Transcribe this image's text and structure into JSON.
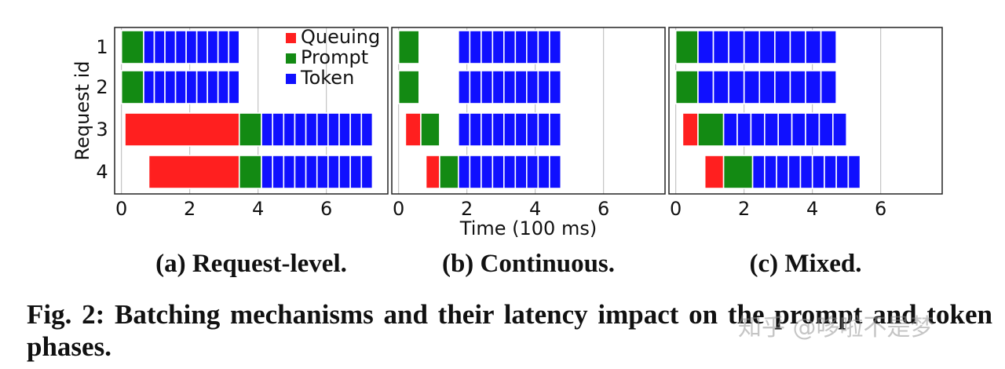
{
  "colors": {
    "Queuing": "#ff1f1f",
    "Prompt": "#138a13",
    "Token": "#1010ff",
    "grid": "#b8b8b8",
    "frame": "#222222"
  },
  "chart_data": [
    {
      "type": "bar",
      "orientation": "horizontal-gantt",
      "title": "(a) Request-level.",
      "ylabel": "Request id",
      "xlabel": "",
      "xlim": [
        -0.2,
        7.8
      ],
      "xticks": [
        0,
        2,
        4,
        6
      ],
      "xgrid": [
        0,
        2,
        4,
        6
      ],
      "legend": {
        "location": "top-right",
        "entries": [
          "Queuing",
          "Prompt",
          "Token"
        ]
      },
      "requests": [
        {
          "id": "1",
          "segments": [
            {
              "phase": "Prompt",
              "start": 0.0,
              "end": 0.65
            },
            {
              "phase": "Token",
              "start": 0.65,
              "end": 3.45,
              "count": 9
            }
          ]
        },
        {
          "id": "2",
          "segments": [
            {
              "phase": "Prompt",
              "start": 0.0,
              "end": 0.65
            },
            {
              "phase": "Token",
              "start": 0.65,
              "end": 3.45,
              "count": 9
            }
          ]
        },
        {
          "id": "3",
          "segments": [
            {
              "phase": "Queuing",
              "start": 0.1,
              "end": 3.45
            },
            {
              "phase": "Prompt",
              "start": 3.45,
              "end": 4.1
            },
            {
              "phase": "Token",
              "start": 4.1,
              "end": 7.35,
              "count": 10
            }
          ]
        },
        {
          "id": "4",
          "segments": [
            {
              "phase": "Queuing",
              "start": 0.8,
              "end": 3.45
            },
            {
              "phase": "Prompt",
              "start": 3.45,
              "end": 4.1
            },
            {
              "phase": "Token",
              "start": 4.1,
              "end": 7.35,
              "count": 10
            }
          ]
        }
      ]
    },
    {
      "type": "bar",
      "orientation": "horizontal-gantt",
      "title": "(b) Continuous.",
      "ylabel": "",
      "xlabel": "Time (100 ms)",
      "xlim": [
        -0.2,
        7.8
      ],
      "xticks": [
        0,
        2,
        4,
        6
      ],
      "xgrid": [
        0,
        2,
        4,
        6
      ],
      "requests": [
        {
          "id": "1",
          "segments": [
            {
              "phase": "Prompt",
              "start": 0.0,
              "end": 0.6
            },
            {
              "phase": "Token",
              "start": 1.75,
              "end": 4.75,
              "count": 9
            }
          ]
        },
        {
          "id": "2",
          "segments": [
            {
              "phase": "Prompt",
              "start": 0.0,
              "end": 0.6
            },
            {
              "phase": "Token",
              "start": 1.75,
              "end": 4.75,
              "count": 9
            }
          ]
        },
        {
          "id": "3",
          "segments": [
            {
              "phase": "Queuing",
              "start": 0.2,
              "end": 0.65
            },
            {
              "phase": "Prompt",
              "start": 0.65,
              "end": 1.2
            },
            {
              "phase": "Token",
              "start": 1.75,
              "end": 4.75,
              "count": 9
            }
          ]
        },
        {
          "id": "4",
          "segments": [
            {
              "phase": "Queuing",
              "start": 0.8,
              "end": 1.2
            },
            {
              "phase": "Prompt",
              "start": 1.2,
              "end": 1.75
            },
            {
              "phase": "Token",
              "start": 1.75,
              "end": 4.75,
              "count": 9
            }
          ]
        }
      ]
    },
    {
      "type": "bar",
      "orientation": "horizontal-gantt",
      "title": "(c) Mixed.",
      "ylabel": "",
      "xlabel": "",
      "xlim": [
        -0.2,
        7.8
      ],
      "xticks": [
        0,
        2,
        4,
        6
      ],
      "xgrid": [
        0,
        2,
        4,
        6
      ],
      "requests": [
        {
          "id": "1",
          "segments": [
            {
              "phase": "Prompt",
              "start": 0.0,
              "end": 0.65
            },
            {
              "phase": "Token",
              "start": 0.65,
              "end": 4.7,
              "count": 9
            }
          ]
        },
        {
          "id": "2",
          "segments": [
            {
              "phase": "Prompt",
              "start": 0.0,
              "end": 0.65
            },
            {
              "phase": "Token",
              "start": 0.65,
              "end": 4.7,
              "count": 9
            }
          ]
        },
        {
          "id": "3",
          "segments": [
            {
              "phase": "Queuing",
              "start": 0.2,
              "end": 0.65
            },
            {
              "phase": "Prompt",
              "start": 0.65,
              "end": 1.4
            },
            {
              "phase": "Token",
              "start": 1.4,
              "end": 5.0,
              "count": 9
            }
          ]
        },
        {
          "id": "4",
          "segments": [
            {
              "phase": "Queuing",
              "start": 0.85,
              "end": 1.4
            },
            {
              "phase": "Prompt",
              "start": 1.4,
              "end": 2.25
            },
            {
              "phase": "Token",
              "start": 2.25,
              "end": 5.4,
              "count": 9
            }
          ]
        }
      ]
    }
  ],
  "caption": "Fig. 2: Batching mechanisms and their latency impact on the prompt and token phases.",
  "watermark": "知乎 @哆啦不是梦"
}
